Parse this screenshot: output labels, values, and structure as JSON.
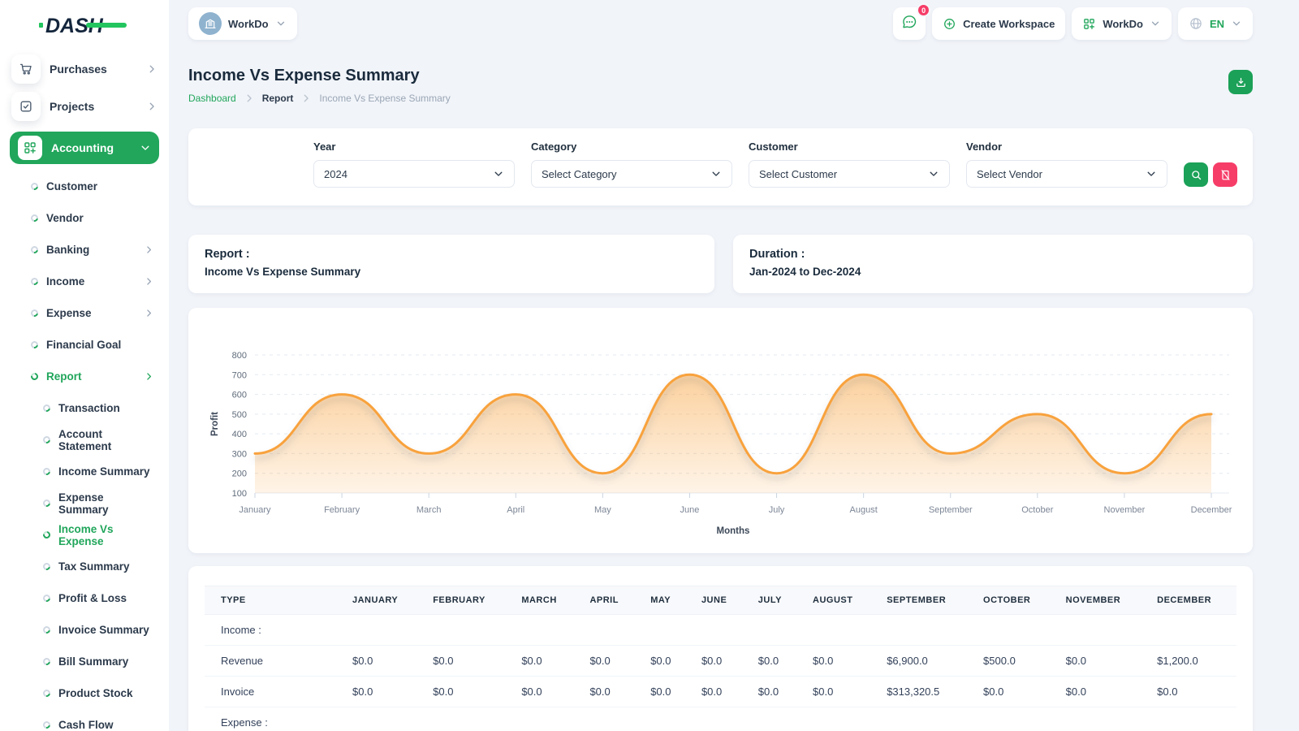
{
  "colors": {
    "accent_green": "#21a65b",
    "pink": "#f63d68",
    "chart_orange": "#f8a23d",
    "navy": "#1a2b3c"
  },
  "brand": {
    "name": "DASH"
  },
  "topbar": {
    "workspace": {
      "label": "WorkDo",
      "avatar_icon": "building-icon"
    },
    "chat": {
      "badge": "0",
      "icon": "chat-icon"
    },
    "create_workspace": {
      "label": "Create Workspace",
      "icon": "plus-circle-icon"
    },
    "app_menu": {
      "label": "WorkDo",
      "icon": "grid-plus-icon"
    },
    "language": {
      "label": "EN",
      "icon": "globe-icon"
    }
  },
  "page": {
    "title": "Income Vs Expense Summary",
    "breadcrumb": [
      {
        "label": "Dashboard",
        "link": true
      },
      {
        "label": "Report",
        "link": true
      },
      {
        "label": "Income Vs Expense Summary",
        "link": false
      }
    ],
    "export_icon": "download-icon"
  },
  "filters": {
    "fields": [
      {
        "name": "year",
        "label": "Year",
        "value": "2024"
      },
      {
        "name": "category",
        "label": "Category",
        "value": "Select Category"
      },
      {
        "name": "customer",
        "label": "Customer",
        "value": "Select Customer"
      },
      {
        "name": "vendor",
        "label": "Vendor",
        "value": "Select Vendor"
      }
    ],
    "search_icon": "search-icon",
    "reset_icon": "reset-icon"
  },
  "summary_cards": {
    "report_label": "Report :",
    "report_value": "Income Vs Expense Summary",
    "duration_label": "Duration :",
    "duration_value": "Jan-2024 to Dec-2024"
  },
  "chart_data": {
    "type": "area",
    "x": [
      "January",
      "February",
      "March",
      "April",
      "May",
      "June",
      "July",
      "August",
      "September",
      "October",
      "November",
      "December"
    ],
    "series": [
      {
        "name": "Profit",
        "values": [
          300,
          600,
          300,
          600,
          200,
          700,
          200,
          700,
          300,
          500,
          200,
          500
        ]
      }
    ],
    "xlabel": "Months",
    "ylabel": "Profit",
    "ylim": [
      100,
      800
    ],
    "yticks": [
      800,
      700,
      600,
      500,
      400,
      300,
      200,
      100
    ],
    "grid": "dashed-horizontal",
    "legend": "none",
    "line_color": "#f8a23d",
    "fill": "orange-vertical-gradient"
  },
  "table": {
    "columns": [
      "TYPE",
      "JANUARY",
      "FEBRUARY",
      "MARCH",
      "APRIL",
      "MAY",
      "JUNE",
      "JULY",
      "AUGUST",
      "SEPTEMBER",
      "OCTOBER",
      "NOVEMBER",
      "DECEMBER"
    ],
    "groups": [
      {
        "label": "Income :",
        "rows": [
          {
            "type": "Revenue",
            "values": [
              "$0.0",
              "$0.0",
              "$0.0",
              "$0.0",
              "$0.0",
              "$0.0",
              "$0.0",
              "$0.0",
              "$6,900.0",
              "$500.0",
              "$0.0",
              "$1,200.0"
            ]
          },
          {
            "type": "Invoice",
            "values": [
              "$0.0",
              "$0.0",
              "$0.0",
              "$0.0",
              "$0.0",
              "$0.0",
              "$0.0",
              "$0.0",
              "$313,320.5",
              "$0.0",
              "$0.0",
              "$0.0"
            ]
          }
        ]
      },
      {
        "label": "Expense :",
        "rows": []
      }
    ]
  },
  "sidebar": {
    "menu": [
      {
        "label": "Purchases",
        "icon": "cart-icon",
        "chevron": "right"
      },
      {
        "label": "Projects",
        "icon": "check-square-icon",
        "chevron": "right"
      },
      {
        "label": "Accounting",
        "icon": "grid-plus-icon",
        "chevron": "down",
        "active": true,
        "children": [
          {
            "label": "Customer"
          },
          {
            "label": "Vendor"
          },
          {
            "label": "Banking",
            "chevron": "right"
          },
          {
            "label": "Income",
            "chevron": "right"
          },
          {
            "label": "Expense",
            "chevron": "right"
          },
          {
            "label": "Financial Goal"
          },
          {
            "label": "Report",
            "chevron": "right",
            "active": true,
            "children": [
              {
                "label": "Transaction"
              },
              {
                "label": "Account Statement"
              },
              {
                "label": "Income Summary"
              },
              {
                "label": "Expense Summary"
              },
              {
                "label": "Income Vs Expense",
                "active": true
              },
              {
                "label": "Tax Summary"
              },
              {
                "label": "Profit & Loss"
              },
              {
                "label": "Invoice Summary"
              },
              {
                "label": "Bill Summary"
              },
              {
                "label": "Product Stock"
              },
              {
                "label": "Cash Flow"
              }
            ]
          }
        ]
      }
    ]
  }
}
